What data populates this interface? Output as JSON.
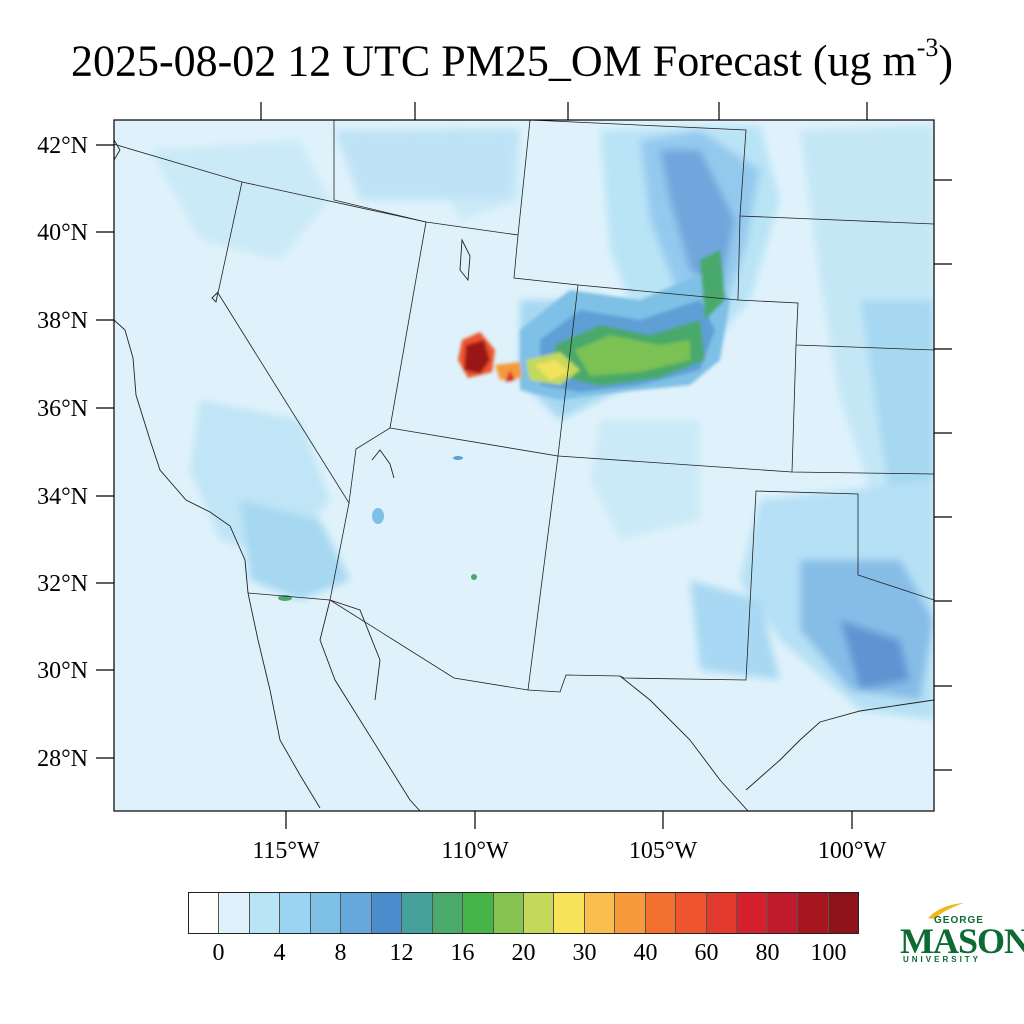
{
  "title": {
    "main": "2025-08-02 12 UTC PM25_OM Forecast (ug m",
    "superscript": "-3",
    "close": ")"
  },
  "map": {
    "lat_labels": [
      "42°N",
      "40°N",
      "38°N",
      "36°N",
      "34°N",
      "32°N",
      "30°N",
      "28°N"
    ],
    "lon_labels": [
      "115°W",
      "110°W",
      "105°W",
      "100°W"
    ],
    "plume_colors": {
      "bg": "#dff2fb",
      "light": "#c4e7f6",
      "mid": "#a0d7f0",
      "blue": "#7fc0e6",
      "deep": "#5e9fd5",
      "green": "#7cc152",
      "dark_green": "#3fa849",
      "yellow": "#f2e35d",
      "orange": "#f49a3a",
      "red": "#d6252a",
      "dark_red": "#9b1219"
    }
  },
  "colorbar": {
    "labels": [
      "0",
      "4",
      "8",
      "12",
      "16",
      "20",
      "30",
      "40",
      "60",
      "80",
      "100"
    ],
    "colors": [
      "#ffffff",
      "#dff2fb",
      "#b9e4f6",
      "#9bd4f2",
      "#7fc0e6",
      "#67a8dc",
      "#4a8ccc",
      "#46a09c",
      "#4aa96b",
      "#45b449",
      "#86c34f",
      "#c4d95a",
      "#f7e45b",
      "#f8bf4c",
      "#f69a3c",
      "#f3712f",
      "#ee552e",
      "#e23a2c",
      "#d5202e",
      "#bf1b2c",
      "#a5161f",
      "#8e1318"
    ]
  },
  "logo": {
    "line1": "GEORGE",
    "line2": "MASON",
    "line3": "UNIVERSITY",
    "color": "#0b6b33",
    "accent": "#f2b51c"
  }
}
